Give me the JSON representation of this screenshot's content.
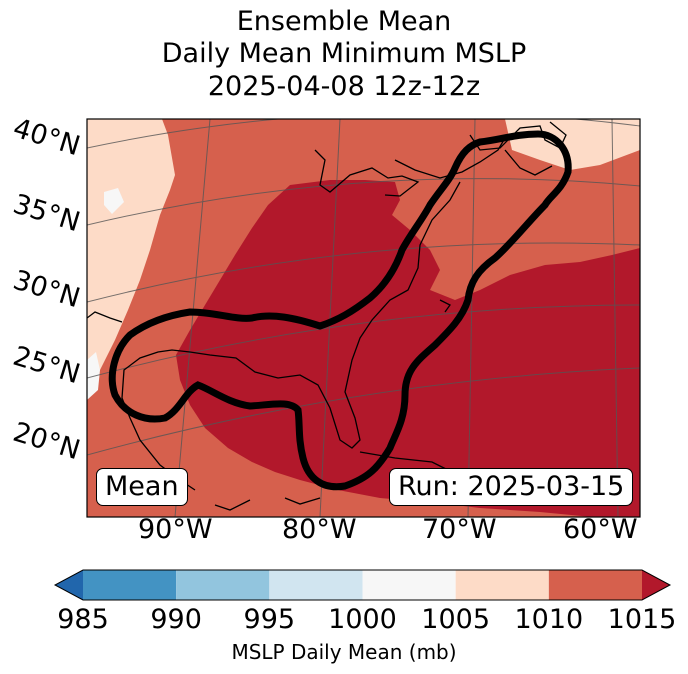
{
  "title": {
    "line1": "Ensemble Mean",
    "line2": "Daily Mean Minimum MSLP",
    "line3": "2025-04-08 12z-12z"
  },
  "map": {
    "lat_labels": [
      "40°N",
      "35°N",
      "30°N",
      "25°N",
      "20°N"
    ],
    "lon_labels": [
      "90°W",
      "80°W",
      "70°W",
      "60°W"
    ],
    "mean_box": "Mean",
    "run_box": "Run: 2025-03-15",
    "fill_colors": {
      "very_light": "#f7f7f7",
      "light": "#fddbc7",
      "medium": "#d6604d",
      "dark": "#b2182b"
    }
  },
  "colorbar": {
    "ticks": [
      "985",
      "990",
      "995",
      "1000",
      "1005",
      "1010",
      "1015"
    ],
    "colors": [
      "#2166ac",
      "#4393c3",
      "#92c5de",
      "#d1e5f0",
      "#f7f7f7",
      "#fddbc7",
      "#d6604d",
      "#b2182b"
    ],
    "label": "MSLP Daily Mean (mb)"
  }
}
